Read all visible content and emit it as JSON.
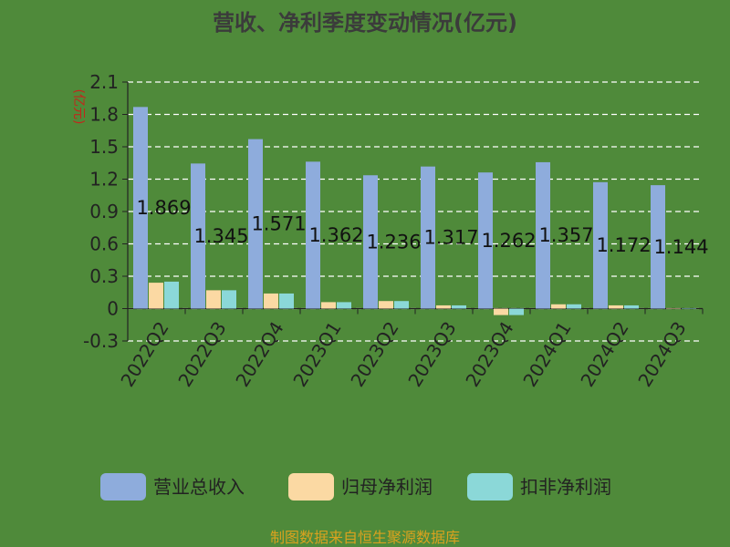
{
  "chart_data": {
    "type": "bar",
    "title": "营收、净利季度变动情况(亿元)",
    "ylabel": "(亿元)",
    "xlabel": "",
    "categories": [
      "2022Q2",
      "2022Q3",
      "2022Q4",
      "2023Q1",
      "2023Q2",
      "2023Q3",
      "2023Q4",
      "2024Q1",
      "2024Q2",
      "2024Q3"
    ],
    "series": [
      {
        "name": "营业总收入",
        "color": "#8eacdc",
        "values": [
          1.869,
          1.345,
          1.571,
          1.362,
          1.236,
          1.317,
          1.262,
          1.357,
          1.172,
          1.144
        ]
      },
      {
        "name": "归母净利润",
        "color": "#fbd9a3",
        "values": [
          0.24,
          0.17,
          0.14,
          0.06,
          0.07,
          0.03,
          -0.06,
          0.04,
          0.03,
          0.0
        ]
      },
      {
        "name": "扣非净利润",
        "color": "#8bd8d8",
        "values": [
          0.25,
          0.17,
          0.14,
          0.06,
          0.07,
          0.03,
          -0.06,
          0.04,
          0.03,
          0.0
        ]
      }
    ],
    "data_labels": [
      "1.869",
      "1.345",
      "1.571",
      "1.362",
      "1.236",
      "1.317",
      "1.262",
      "1.357",
      "1.172",
      "1.144"
    ],
    "ylim": [
      -0.3,
      2.1
    ],
    "yticks": [
      "-0.3",
      "0",
      "0.3",
      "0.6",
      "0.9",
      "1.2",
      "1.5",
      "1.8",
      "2.1"
    ],
    "grid": true,
    "legend": "bottom"
  },
  "source_note": "制图数据来自恒生聚源数据库"
}
